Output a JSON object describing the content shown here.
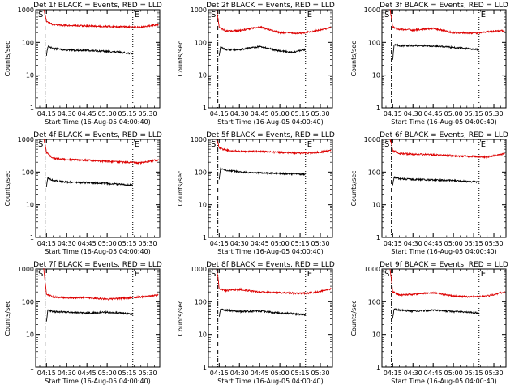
{
  "chart_data": [
    {
      "type": "line",
      "title": "Det 1f BLACK = Events, RED = LLD",
      "xlabel": "Start Time (16-Aug-05 04:00:40)",
      "ylabel": "Counts/sec",
      "yscale": "log",
      "ylim": [
        1,
        1000
      ],
      "x_ticks": [
        "04:15",
        "04:30",
        "04:45",
        "05:00",
        "05:15",
        "05:30"
      ],
      "y_ticks": [
        "1",
        "10",
        "100",
        "1000"
      ],
      "markers": [
        "S",
        "E"
      ],
      "series": [
        {
          "color": "#000000",
          "x": [
            "04:15",
            "04:16",
            "04:20",
            "04:30",
            "04:45",
            "05:00",
            "05:10",
            "05:19"
          ],
          "values": [
            40,
            75,
            65,
            58,
            57,
            53,
            50,
            45
          ]
        },
        {
          "color": "#dd0000",
          "x": [
            "04:13",
            "04:14",
            "04:15",
            "04:20",
            "04:30",
            "04:45",
            "05:00",
            "05:15",
            "05:25",
            "05:38"
          ],
          "values": [
            1000,
            700,
            450,
            350,
            330,
            320,
            310,
            300,
            290,
            360
          ]
        }
      ]
    },
    {
      "type": "line",
      "title": "Det 2f BLACK = Events, RED = LLD",
      "xlabel": "Start Time (16-Aug-05 04:00:40)",
      "ylabel": "Counts/sec",
      "yscale": "log",
      "ylim": [
        1,
        1000
      ],
      "x_ticks": [
        "04:15",
        "04:30",
        "04:45",
        "05:00",
        "05:15",
        "05:30"
      ],
      "y_ticks": [
        "1",
        "10",
        "100",
        "1000"
      ],
      "markers": [
        "S",
        "E"
      ],
      "series": [
        {
          "color": "#000000",
          "x": [
            "04:15",
            "04:16",
            "04:20",
            "04:30",
            "04:45",
            "05:00",
            "05:10",
            "05:19"
          ],
          "values": [
            40,
            72,
            60,
            60,
            75,
            55,
            50,
            60
          ]
        },
        {
          "color": "#dd0000",
          "x": [
            "04:13",
            "04:14",
            "04:15",
            "04:20",
            "04:30",
            "04:45",
            "05:00",
            "05:15",
            "05:25",
            "05:38"
          ],
          "values": [
            1000,
            600,
            300,
            220,
            230,
            300,
            200,
            190,
            220,
            290
          ]
        }
      ]
    },
    {
      "type": "line",
      "title": "Det 3f BLACK = Events, RED = LLD",
      "xlabel": "Start Time (16-Aug-05 04:00:40)",
      "ylabel": "Counts/sec",
      "yscale": "log",
      "ylim": [
        1,
        1000
      ],
      "x_ticks": [
        "04:15",
        "04:30",
        "04:45",
        "05:00",
        "05:15",
        "05:30"
      ],
      "y_ticks": [
        "1",
        "10",
        "100",
        "1000"
      ],
      "markers": [
        "S",
        "E"
      ],
      "series": [
        {
          "color": "#000000",
          "x": [
            "04:15",
            "04:16",
            "04:20",
            "04:30",
            "04:45",
            "05:00",
            "05:10",
            "05:19"
          ],
          "values": [
            30,
            85,
            80,
            80,
            78,
            70,
            65,
            60
          ]
        },
        {
          "color": "#dd0000",
          "x": [
            "04:13",
            "04:14",
            "04:15",
            "04:20",
            "04:30",
            "04:45",
            "05:00",
            "05:15",
            "05:25",
            "05:38"
          ],
          "values": [
            1000,
            600,
            300,
            250,
            240,
            270,
            200,
            190,
            210,
            230
          ]
        }
      ]
    },
    {
      "type": "line",
      "title": "Det 4f BLACK = Events, RED = LLD",
      "xlabel": "Start Time (16-Aug-05 04:00:40)",
      "ylabel": "Counts/sec",
      "yscale": "log",
      "ylim": [
        1,
        1000
      ],
      "x_ticks": [
        "04:15",
        "04:30",
        "04:45",
        "05:00",
        "05:15",
        "05:30"
      ],
      "y_ticks": [
        "1",
        "10",
        "100",
        "1000"
      ],
      "markers": [
        "S",
        "E"
      ],
      "series": [
        {
          "color": "#000000",
          "x": [
            "04:15",
            "04:16",
            "04:20",
            "04:30",
            "04:45",
            "05:00",
            "05:10",
            "05:19"
          ],
          "values": [
            35,
            65,
            55,
            50,
            48,
            45,
            42,
            40
          ]
        },
        {
          "color": "#dd0000",
          "x": [
            "04:13",
            "04:14",
            "04:15",
            "04:20",
            "04:30",
            "04:45",
            "05:00",
            "05:15",
            "05:25",
            "05:38"
          ],
          "values": [
            1000,
            700,
            400,
            260,
            240,
            230,
            210,
            200,
            190,
            240
          ]
        }
      ]
    },
    {
      "type": "line",
      "title": "Det 5f BLACK = Events, RED = LLD",
      "xlabel": "Start Time (16-Aug-05 04:00:40)",
      "ylabel": "Counts/sec",
      "yscale": "log",
      "ylim": [
        1,
        1000
      ],
      "x_ticks": [
        "04:15",
        "04:30",
        "04:45",
        "05:00",
        "05:15",
        "05:30"
      ],
      "y_ticks": [
        "1",
        "10",
        "100",
        "1000"
      ],
      "markers": [
        "S",
        "E"
      ],
      "series": [
        {
          "color": "#000000",
          "x": [
            "04:15",
            "04:16",
            "04:20",
            "04:30",
            "04:45",
            "05:00",
            "05:10",
            "05:19"
          ],
          "values": [
            60,
            130,
            115,
            100,
            95,
            90,
            88,
            85
          ]
        },
        {
          "color": "#dd0000",
          "x": [
            "04:13",
            "04:14",
            "04:15",
            "04:20",
            "04:30",
            "04:45",
            "05:00",
            "05:15",
            "05:25",
            "05:38"
          ],
          "values": [
            1000,
            800,
            550,
            470,
            430,
            430,
            400,
            380,
            390,
            450
          ]
        }
      ]
    },
    {
      "type": "line",
      "title": "Det 6f BLACK = Events, RED = LLD",
      "xlabel": "Start Time (16-Aug-05 04:00:40)",
      "ylabel": "Counts/sec",
      "yscale": "log",
      "ylim": [
        1,
        1000
      ],
      "x_ticks": [
        "04:15",
        "04:30",
        "04:45",
        "05:00",
        "05:15",
        "05:30"
      ],
      "y_ticks": [
        "1",
        "10",
        "100",
        "1000"
      ],
      "markers": [
        "S",
        "E"
      ],
      "series": [
        {
          "color": "#000000",
          "x": [
            "04:15",
            "04:16",
            "04:20",
            "04:30",
            "04:45",
            "05:00",
            "05:10",
            "05:19"
          ],
          "values": [
            40,
            70,
            62,
            60,
            58,
            55,
            52,
            50
          ]
        },
        {
          "color": "#dd0000",
          "x": [
            "04:13",
            "04:14",
            "04:15",
            "04:20",
            "04:30",
            "04:45",
            "05:00",
            "05:15",
            "05:25",
            "05:38"
          ],
          "values": [
            1000,
            750,
            450,
            370,
            350,
            340,
            310,
            300,
            290,
            370
          ]
        }
      ]
    },
    {
      "type": "line",
      "title": "Det 7f BLACK = Events, RED = LLD",
      "xlabel": "Start Time (16-Aug-05 04:00:40)",
      "ylabel": "Counts/sec",
      "yscale": "log",
      "ylim": [
        1,
        1000
      ],
      "x_ticks": [
        "04:15",
        "04:30",
        "04:45",
        "05:00",
        "05:15",
        "05:30"
      ],
      "y_ticks": [
        "1",
        "10",
        "100",
        "1000"
      ],
      "markers": [
        "S",
        "E"
      ],
      "series": [
        {
          "color": "#000000",
          "x": [
            "04:15",
            "04:16",
            "04:20",
            "04:30",
            "04:45",
            "05:00",
            "05:10",
            "05:19"
          ],
          "values": [
            25,
            55,
            50,
            48,
            45,
            48,
            45,
            42
          ]
        },
        {
          "color": "#dd0000",
          "x": [
            "04:13",
            "04:14",
            "04:15",
            "04:20",
            "04:30",
            "04:45",
            "05:00",
            "05:15",
            "05:25",
            "05:38"
          ],
          "values": [
            1000,
            400,
            170,
            140,
            130,
            135,
            120,
            130,
            140,
            160
          ]
        }
      ]
    },
    {
      "type": "line",
      "title": "Det 8f BLACK = Events, RED = LLD",
      "xlabel": "Start Time (16-Aug-05 04:00:40)",
      "ylabel": "Counts/sec",
      "yscale": "log",
      "ylim": [
        1,
        1000
      ],
      "x_ticks": [
        "04:15",
        "04:30",
        "04:45",
        "05:00",
        "05:15",
        "05:30"
      ],
      "y_ticks": [
        "1",
        "10",
        "100",
        "1000"
      ],
      "markers": [
        "S",
        "E"
      ],
      "series": [
        {
          "color": "#000000",
          "x": [
            "04:15",
            "04:16",
            "04:20",
            "04:30",
            "04:45",
            "05:00",
            "05:10",
            "05:19"
          ],
          "values": [
            35,
            60,
            55,
            50,
            52,
            45,
            43,
            40
          ]
        },
        {
          "color": "#dd0000",
          "x": [
            "04:13",
            "04:14",
            "04:15",
            "04:20",
            "04:30",
            "04:45",
            "05:00",
            "05:15",
            "05:25",
            "05:38"
          ],
          "values": [
            1000,
            600,
            250,
            220,
            240,
            200,
            190,
            180,
            190,
            250
          ]
        }
      ]
    },
    {
      "type": "line",
      "title": "Det 9f BLACK = Events, RED = LLD",
      "xlabel": "Start Time (16-Aug-05 04:00:40)",
      "ylabel": "Counts/sec",
      "yscale": "log",
      "ylim": [
        1,
        1000
      ],
      "x_ticks": [
        "04:15",
        "04:30",
        "04:45",
        "05:00",
        "05:15",
        "05:30"
      ],
      "y_ticks": [
        "1",
        "10",
        "100",
        "1000"
      ],
      "markers": [
        "S",
        "E"
      ],
      "series": [
        {
          "color": "#000000",
          "x": [
            "04:15",
            "04:16",
            "04:20",
            "04:30",
            "04:45",
            "05:00",
            "05:10",
            "05:19"
          ],
          "values": [
            30,
            60,
            55,
            52,
            55,
            50,
            48,
            45
          ]
        },
        {
          "color": "#dd0000",
          "x": [
            "04:13",
            "04:14",
            "04:15",
            "04:20",
            "04:30",
            "04:45",
            "05:00",
            "05:15",
            "05:25",
            "05:38"
          ],
          "values": [
            1000,
            500,
            200,
            160,
            170,
            190,
            150,
            140,
            150,
            200
          ]
        }
      ]
    }
  ]
}
